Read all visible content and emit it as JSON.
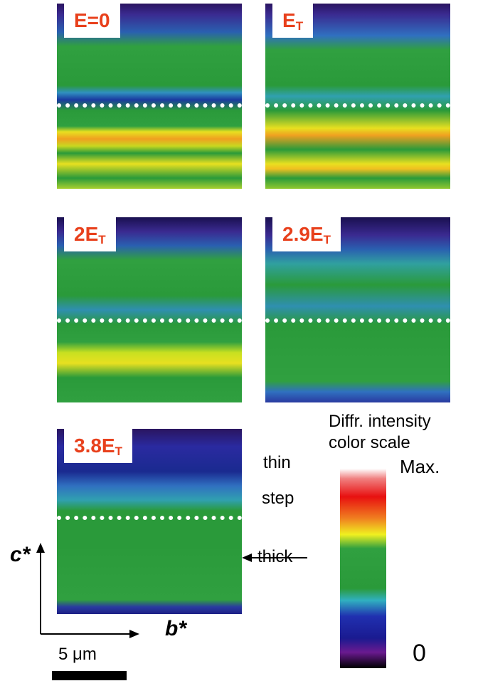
{
  "panels": [
    {
      "main": "E=0"
    },
    {
      "main": "E",
      "sub": "T"
    },
    {
      "main": "2E",
      "sub": "T"
    },
    {
      "main": "2.9E",
      "sub": "T"
    },
    {
      "main": "3.8E",
      "sub": "T"
    }
  ],
  "legend": {
    "title1": "Diffr. intensity",
    "title2": "color scale",
    "max": "Max.",
    "min": "0"
  },
  "annotations": {
    "thin": "thin",
    "step": "step",
    "thick": "thick"
  },
  "axes": {
    "y": "c*",
    "x": "b*",
    "scale": "5 μm"
  }
}
